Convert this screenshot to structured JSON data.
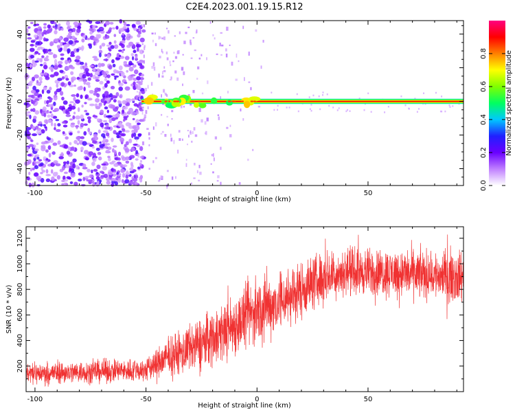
{
  "title": "C2E4.2023.001.19.15.R12",
  "chart_data": [
    {
      "type": "heatmap",
      "xlabel": "Height of straight line (km)",
      "ylabel": "Frequency (Hz)",
      "xlim": [
        -104,
        93
      ],
      "ylim": [
        -50,
        48
      ],
      "x_ticks": [
        -100,
        -50,
        0,
        50
      ],
      "y_ticks": [
        40,
        20,
        0,
        -20,
        -40
      ],
      "x_tick_labels": [
        "-100",
        "-50",
        "0",
        "50"
      ],
      "y_tick_labels": [
        "40",
        "20",
        "0",
        "-20",
        "-40"
      ],
      "colorbar": {
        "label": "Normalized spectral amplitude",
        "range": [
          0,
          1
        ],
        "ticks": [
          0.0,
          0.2,
          0.4,
          0.6,
          0.8
        ],
        "tick_labels": [
          "0.0",
          "0.2",
          "0.4",
          "0.6",
          "0.8"
        ]
      },
      "colormap_stops": [
        "#ffffff",
        "#c080ff",
        "#6a00ff",
        "#2020ff",
        "#00c8ff",
        "#00ff60",
        "#80ff00",
        "#ffff00",
        "#ff8000",
        "#ff0000",
        "#ff0080"
      ],
      "features": {
        "noise_region_x": [
          -104,
          -55
        ],
        "ridge_frequency": 0,
        "ridge_start_x": -55,
        "ridge_amplitude": 0.9
      },
      "grid": false
    },
    {
      "type": "line",
      "xlabel": "Height of straight line (km)",
      "ylabel": "SNR (10 * v/v)",
      "xlim": [
        -104,
        93
      ],
      "ylim": [
        0,
        1290
      ],
      "x_ticks": [
        -100,
        -50,
        0,
        50
      ],
      "y_ticks": [
        200,
        400,
        600,
        800,
        1000,
        1200
      ],
      "x_tick_labels": [
        "-100",
        "-50",
        "0",
        "50"
      ],
      "y_tick_labels": [
        "200",
        "400",
        "600",
        "800",
        "1000",
        "1200"
      ],
      "color": "#f03232",
      "trend": {
        "x": [
          -104,
          -50,
          -40,
          -30,
          -20,
          -10,
          0,
          10,
          20,
          30,
          40,
          60,
          93
        ],
        "y_mean": [
          140,
          170,
          270,
          330,
          430,
          520,
          640,
          700,
          800,
          900,
          940,
          930,
          900
        ],
        "y_spread": [
          70,
          80,
          130,
          160,
          190,
          200,
          220,
          200,
          190,
          170,
          150,
          160,
          170
        ]
      },
      "grid": false
    }
  ]
}
